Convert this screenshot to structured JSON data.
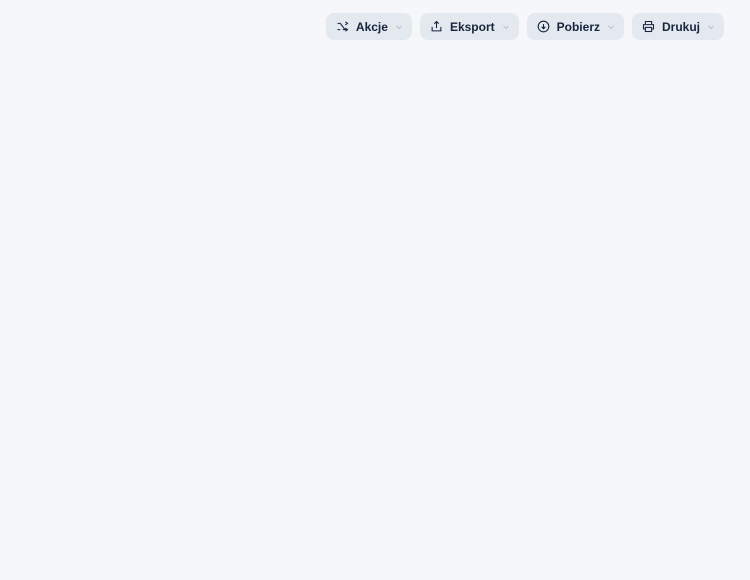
{
  "main": {
    "buttons": [
      {
        "icon": "actions-icon",
        "label": "Akcje"
      },
      {
        "icon": "export-icon",
        "label": "Eksport"
      },
      {
        "icon": "download-icon",
        "label": "Pobierz"
      },
      {
        "icon": "print-icon",
        "label": "Drukuj"
      }
    ]
  }
}
